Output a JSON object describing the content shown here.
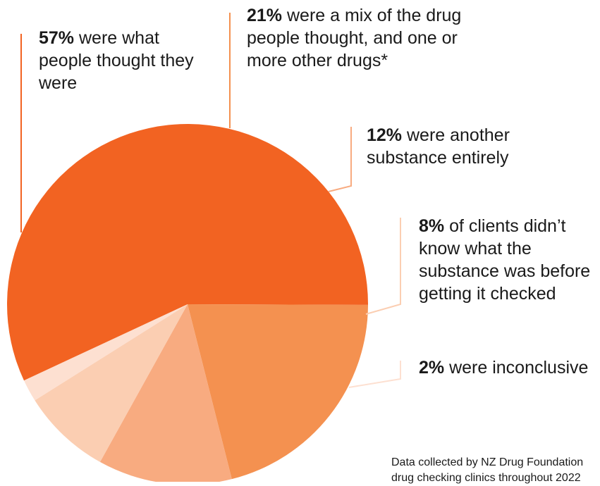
{
  "chart_data": {
    "type": "pie",
    "slices": [
      {
        "value": 57,
        "pct_label": "57%",
        "text": " were what people thought they were",
        "color": "#f26322"
      },
      {
        "value": 21,
        "pct_label": "21%",
        "text": " were a mix of the drug people thought, and one or more other drugs*",
        "color": "#f49150"
      },
      {
        "value": 12,
        "pct_label": "12%",
        "text": " were another substance entirely",
        "color": "#f8ab80"
      },
      {
        "value": 8,
        "pct_label": "8%",
        "text": " of clients didn’t know what the substance was before getting it checked",
        "color": "#fbceb2"
      },
      {
        "value": 2,
        "pct_label": "2%",
        "text": " were inconclusive",
        "color": "#fde0d1"
      }
    ],
    "note": "Data collected by NZ Drug Foundation drug checking clinics throughout 2022"
  }
}
